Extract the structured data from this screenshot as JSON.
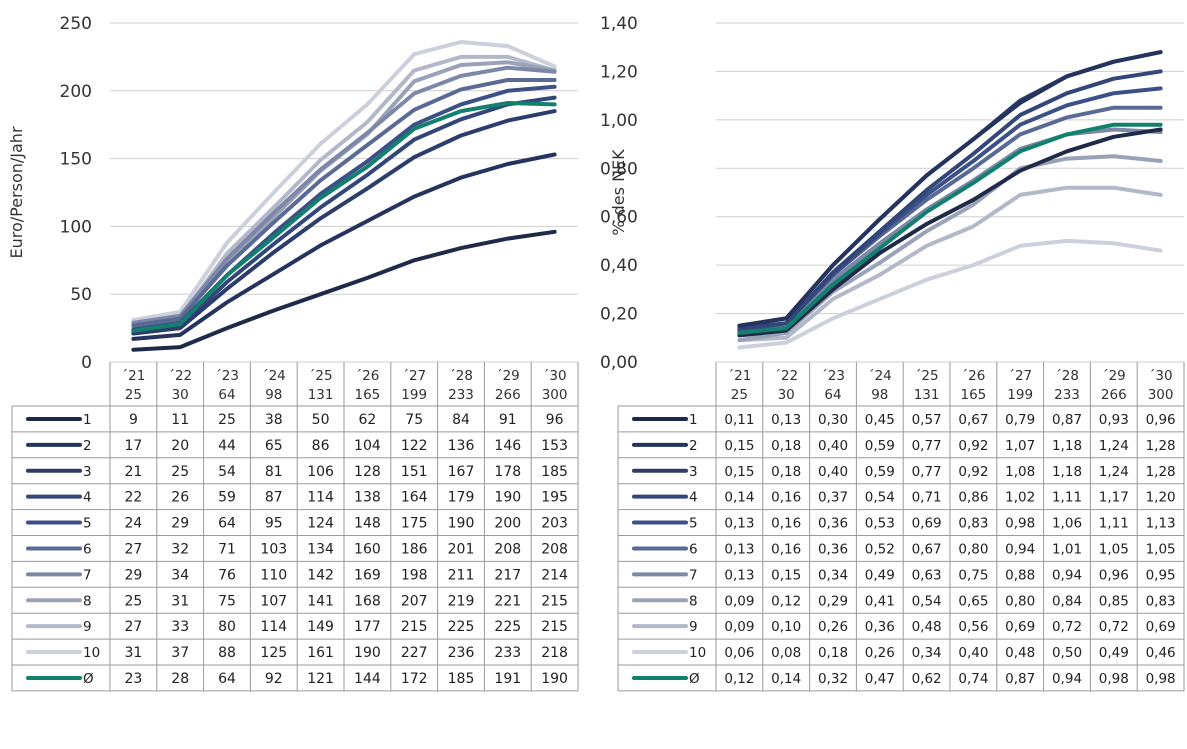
{
  "chart_data": [
    {
      "type": "line",
      "title": "",
      "ylabel": "Euro/Person/Jahr",
      "ylim": [
        0,
        250
      ],
      "yticks": [
        "0",
        "50",
        "100",
        "150",
        "200",
        "250"
      ],
      "categories": [
        {
          "year": "´21",
          "value": "25"
        },
        {
          "year": "´22",
          "value": "30"
        },
        {
          "year": "´23",
          "value": "64"
        },
        {
          "year": "´24",
          "value": "98"
        },
        {
          "year": "´25",
          "value": "131"
        },
        {
          "year": "´26",
          "value": "165"
        },
        {
          "year": "´27",
          "value": "199"
        },
        {
          "year": "´28",
          "value": "233"
        },
        {
          "year": "´29",
          "value": "266"
        },
        {
          "year": "´30",
          "value": "300"
        }
      ],
      "grid": true,
      "legend": "table-below",
      "series": [
        {
          "name": "1",
          "color": "#1f2a4a",
          "values": [
            "9",
            "11",
            "25",
            "38",
            "50",
            "62",
            "75",
            "84",
            "91",
            "96"
          ]
        },
        {
          "name": "2",
          "color": "#25345e",
          "values": [
            "17",
            "20",
            "44",
            "65",
            "86",
            "104",
            "122",
            "136",
            "146",
            "153"
          ]
        },
        {
          "name": "3",
          "color": "#2c3d6d",
          "values": [
            "21",
            "25",
            "54",
            "81",
            "106",
            "128",
            "151",
            "167",
            "178",
            "185"
          ]
        },
        {
          "name": "4",
          "color": "#33467a",
          "values": [
            "22",
            "26",
            "59",
            "87",
            "114",
            "138",
            "164",
            "179",
            "190",
            "195"
          ]
        },
        {
          "name": "5",
          "color": "#3b5088",
          "values": [
            "24",
            "29",
            "64",
            "95",
            "124",
            "148",
            "175",
            "190",
            "200",
            "203"
          ]
        },
        {
          "name": "6",
          "color": "#5a6a96",
          "values": [
            "27",
            "32",
            "71",
            "103",
            "134",
            "160",
            "186",
            "201",
            "208",
            "208"
          ]
        },
        {
          "name": "7",
          "color": "#7d88a8",
          "values": [
            "29",
            "34",
            "76",
            "110",
            "142",
            "169",
            "198",
            "211",
            "217",
            "214"
          ]
        },
        {
          "name": "8",
          "color": "#9aa2b8",
          "values": [
            "25",
            "31",
            "75",
            "107",
            "141",
            "168",
            "207",
            "219",
            "221",
            "215"
          ]
        },
        {
          "name": "9",
          "color": "#b3b8c9",
          "values": [
            "27",
            "33",
            "80",
            "114",
            "149",
            "177",
            "215",
            "225",
            "225",
            "215"
          ]
        },
        {
          "name": "10",
          "color": "#ccd0db",
          "values": [
            "31",
            "37",
            "88",
            "125",
            "161",
            "190",
            "227",
            "236",
            "233",
            "218"
          ]
        },
        {
          "name": "Ø",
          "color": "#12806c",
          "values": [
            "23",
            "28",
            "64",
            "92",
            "121",
            "144",
            "172",
            "185",
            "191",
            "190"
          ]
        }
      ]
    },
    {
      "type": "line",
      "title": "",
      "ylabel": "% des NEK",
      "ylim": [
        0,
        1.4
      ],
      "yticks": [
        "0,00",
        "0,20",
        "0,40",
        "0,60",
        "0,80",
        "1,00",
        "1,20",
        "1,40"
      ],
      "categories": [
        {
          "year": "´21",
          "value": "25"
        },
        {
          "year": "´22",
          "value": "30"
        },
        {
          "year": "´23",
          "value": "64"
        },
        {
          "year": "´24",
          "value": "98"
        },
        {
          "year": "´25",
          "value": "131"
        },
        {
          "year": "´26",
          "value": "165"
        },
        {
          "year": "´27",
          "value": "199"
        },
        {
          "year": "´28",
          "value": "233"
        },
        {
          "year": "´29",
          "value": "266"
        },
        {
          "year": "´30",
          "value": "300"
        }
      ],
      "grid": true,
      "legend": "table-below",
      "series": [
        {
          "name": "1",
          "color": "#1f2a4a",
          "values": [
            "0,11",
            "0,13",
            "0,30",
            "0,45",
            "0,57",
            "0,67",
            "0,79",
            "0,87",
            "0,93",
            "0,96"
          ]
        },
        {
          "name": "2",
          "color": "#25345e",
          "values": [
            "0,15",
            "0,18",
            "0,40",
            "0,59",
            "0,77",
            "0,92",
            "1,07",
            "1,18",
            "1,24",
            "1,28"
          ]
        },
        {
          "name": "3",
          "color": "#2c3d6d",
          "values": [
            "0,15",
            "0,18",
            "0,40",
            "0,59",
            "0,77",
            "0,92",
            "1,08",
            "1,18",
            "1,24",
            "1,28"
          ]
        },
        {
          "name": "4",
          "color": "#33467a",
          "values": [
            "0,14",
            "0,16",
            "0,37",
            "0,54",
            "0,71",
            "0,86",
            "1,02",
            "1,11",
            "1,17",
            "1,20"
          ]
        },
        {
          "name": "5",
          "color": "#3b5088",
          "values": [
            "0,13",
            "0,16",
            "0,36",
            "0,53",
            "0,69",
            "0,83",
            "0,98",
            "1,06",
            "1,11",
            "1,13"
          ]
        },
        {
          "name": "6",
          "color": "#5a6a96",
          "values": [
            "0,13",
            "0,16",
            "0,36",
            "0,52",
            "0,67",
            "0,80",
            "0,94",
            "1,01",
            "1,05",
            "1,05"
          ]
        },
        {
          "name": "7",
          "color": "#7d88a8",
          "values": [
            "0,13",
            "0,15",
            "0,34",
            "0,49",
            "0,63",
            "0,75",
            "0,88",
            "0,94",
            "0,96",
            "0,95"
          ]
        },
        {
          "name": "8",
          "color": "#9aa2b8",
          "values": [
            "0,09",
            "0,12",
            "0,29",
            "0,41",
            "0,54",
            "0,65",
            "0,80",
            "0,84",
            "0,85",
            "0,83"
          ]
        },
        {
          "name": "9",
          "color": "#b3b8c9",
          "values": [
            "0,09",
            "0,10",
            "0,26",
            "0,36",
            "0,48",
            "0,56",
            "0,69",
            "0,72",
            "0,72",
            "0,69"
          ]
        },
        {
          "name": "10",
          "color": "#ccd0db",
          "values": [
            "0,06",
            "0,08",
            "0,18",
            "0,26",
            "0,34",
            "0,40",
            "0,48",
            "0,50",
            "0,49",
            "0,46"
          ]
        },
        {
          "name": "Ø",
          "color": "#12806c",
          "values": [
            "0,12",
            "0,14",
            "0,32",
            "0,47",
            "0,62",
            "0,74",
            "0,87",
            "0,94",
            "0,98",
            "0,98"
          ]
        }
      ]
    }
  ]
}
